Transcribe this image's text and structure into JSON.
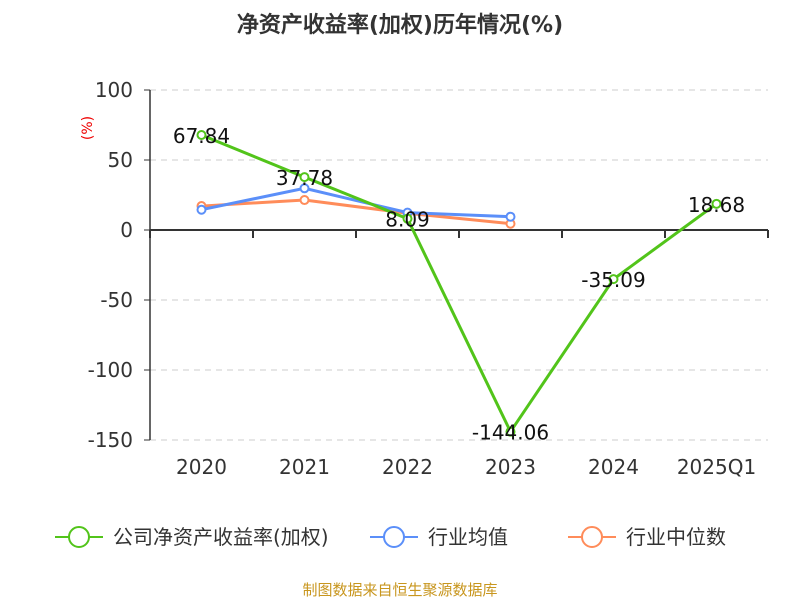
{
  "chart_data": {
    "type": "line",
    "title": "净资产收益率(加权)历年情况(%)",
    "ylabel": "(%)",
    "ylim": [
      -150,
      100
    ],
    "yticks": [
      100,
      50,
      0,
      -50,
      -100,
      -150
    ],
    "grid": true,
    "categories": [
      "2020",
      "2021",
      "2022",
      "2023",
      "2024",
      "2025Q1"
    ],
    "series": [
      {
        "name": "公司净资产收益率(加权)",
        "color": "#52c41a",
        "values": [
          67.84,
          37.78,
          8.09,
          -144.06,
          -35.09,
          18.68
        ],
        "labels": [
          "67.84",
          "37.78",
          "8.09",
          "-144.06",
          "-35.09",
          "18.68"
        ]
      },
      {
        "name": "行业均值",
        "color": "#5b8ff9",
        "values": [
          14.5,
          29.8,
          12.4,
          9.5,
          null,
          null
        ]
      },
      {
        "name": "行业中位数",
        "color": "#ff8c5a",
        "values": [
          17.1,
          21.4,
          12,
          4.5,
          null,
          null
        ]
      }
    ],
    "legend_position": "bottom",
    "source": "制图数据来自恒生聚源数据库"
  }
}
